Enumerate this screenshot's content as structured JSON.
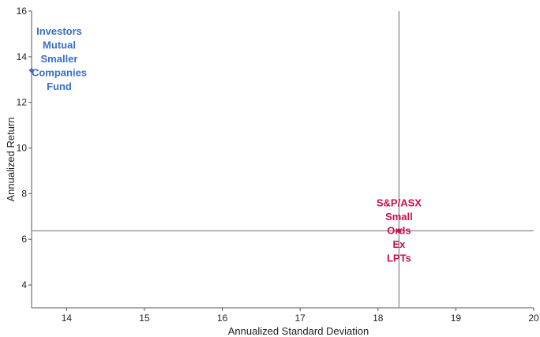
{
  "chart_data": {
    "type": "scatter",
    "title": "",
    "xlabel": "Annualized Standard Deviation",
    "ylabel": "Annualized Return",
    "xlim": [
      13.55,
      20
    ],
    "ylim": [
      3,
      16
    ],
    "x_ticks": [
      14,
      15,
      16,
      17,
      18,
      19,
      20
    ],
    "y_ticks": [
      4,
      6,
      8,
      10,
      12,
      14,
      16
    ],
    "grid": false,
    "legend": "none",
    "reference_lines": {
      "x": 18.27,
      "y": 6.37
    },
    "series": [
      {
        "name": "Investors Mutual Smaller Companies Fund",
        "label_lines": [
          "Investors",
          "Mutual",
          "Smaller",
          "Companies",
          "Fund"
        ],
        "color": "#3a6fc4",
        "marker": "diamond",
        "points": [
          {
            "x": 13.55,
            "y": 13.4
          }
        ]
      },
      {
        "name": "S&P/ASX Small Ords Ex LPTs",
        "label_lines": [
          "S&P/ASX",
          "Small",
          "Ords",
          "Ex",
          "LPTs"
        ],
        "color": "#c8104a",
        "marker": "diamond",
        "points": [
          {
            "x": 18.27,
            "y": 6.37
          }
        ]
      }
    ]
  }
}
